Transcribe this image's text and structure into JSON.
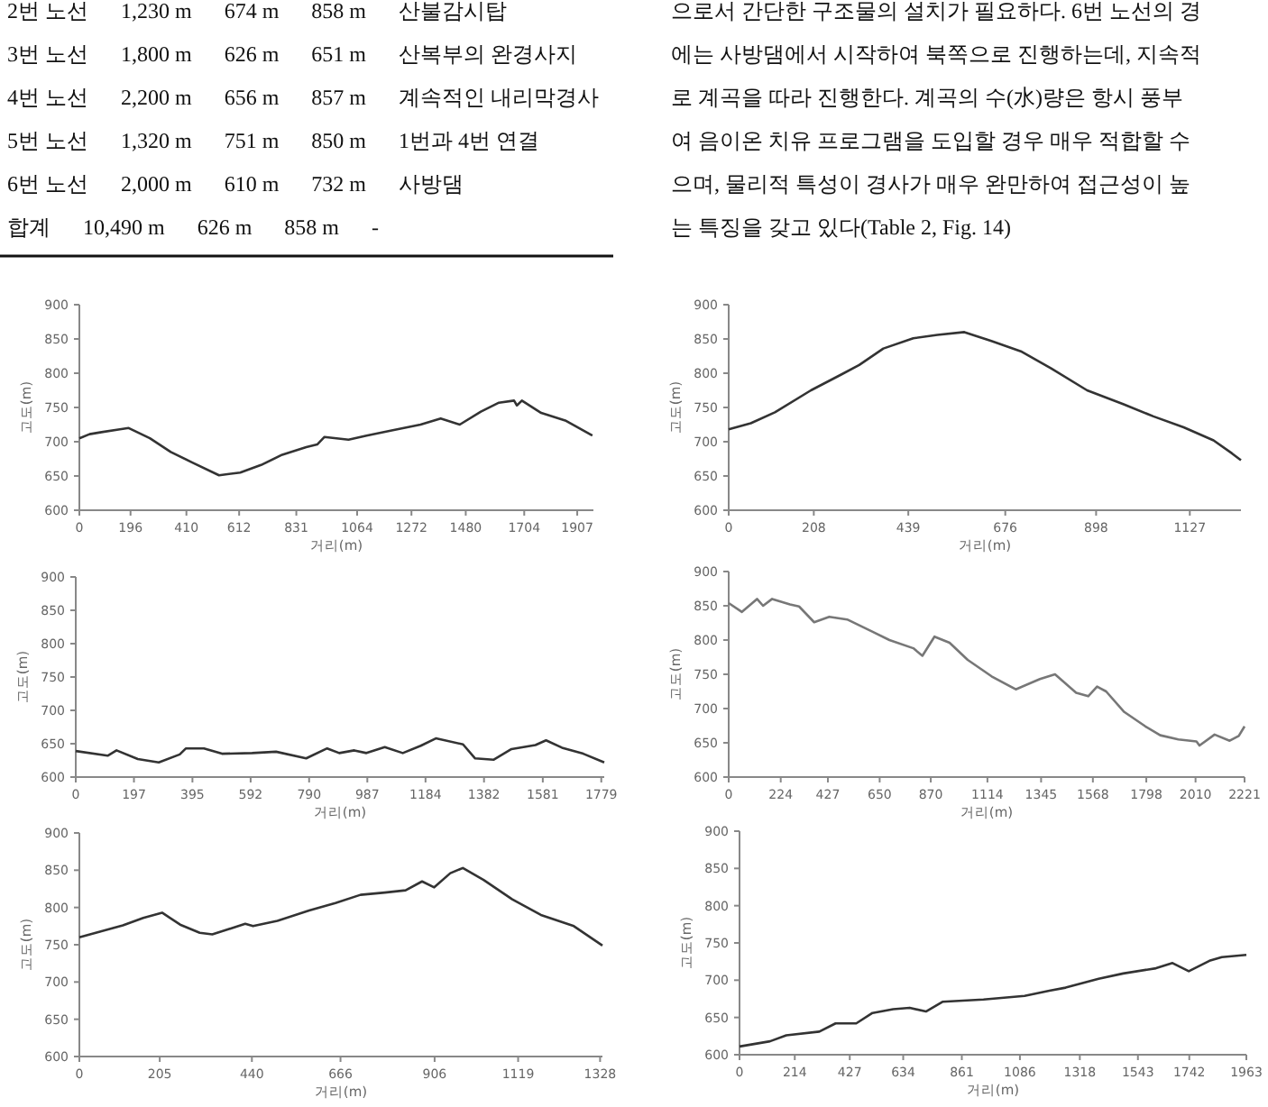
{
  "chart_data": [
    {
      "type": "other",
      "annotations": [
        "2번 노선",
        "1,230 m",
        "674 m",
        "858 m",
        "산불감시탑",
        "3번 노선",
        "1,800 m",
        "626 m",
        "651 m",
        "산복부의 완경사지",
        "4번 노선",
        "2,200 m",
        "656 m",
        "857 m",
        "계속적인 내리막경사",
        "5번 노선",
        "1,320 m",
        "751 m",
        "850 m",
        "1번과 4번 연결",
        "6번 노선",
        "2,000 m",
        "610 m",
        "732 m",
        "사방댐",
        "합계",
        "10,490 m",
        "626 m",
        "858 m",
        "-"
      ]
    },
    {
      "type": "other",
      "annotations": [
        "으로서 간단한 구조물의 설치가 필요하다. 6번 노선의 경",
        "에는 사방댐에서 시작하여 북쪽으로 진행하는데, 지속적",
        "로 계곡을 따라 진행한다. 계곡의 수(水)량은 항시 풍부",
        "여 음이온 치유 프로그램을 도입할 경우 매우 적합할 수",
        "으며, 물리적 특성이 경사가 매우 완만하여 접근성이 높",
        "는 특징을 갖고 있다(Table 2, Fig. 14)"
      ]
    },
    {
      "type": "line",
      "xlabel": "거리(m)",
      "ylabel": "고도(m)",
      "xlim": [
        0,
        1969
      ],
      "xticks": [
        0,
        196,
        410,
        612,
        831,
        1064,
        1272,
        1480,
        1704,
        1907
      ],
      "ylim": [
        600,
        900
      ],
      "yticks": [
        600,
        650,
        700,
        750,
        800,
        850,
        900
      ],
      "x": [
        0,
        39,
        85,
        155,
        189,
        270,
        350,
        431,
        535,
        616,
        696,
        777,
        869,
        911,
        939,
        1031,
        1100,
        1192,
        1307,
        1384,
        1457,
        1538,
        1607,
        1665,
        1676,
        1695,
        1769,
        1861,
        1965
      ],
      "series": [
        {
          "color": "#333333",
          "values": [
            705,
            711,
            714,
            718,
            720,
            705,
            685,
            670,
            651,
            655,
            666,
            681,
            692,
            696,
            707,
            703,
            709,
            716,
            725,
            734,
            725,
            744,
            757,
            760,
            753,
            760,
            742,
            731,
            709
          ]
        }
      ]
    },
    {
      "type": "line",
      "xlabel": "거리(m)",
      "ylabel": "고도(m)",
      "xlim": [
        0,
        1252
      ],
      "xticks": [
        0,
        208,
        439,
        676,
        898,
        1127
      ],
      "ylim": [
        600,
        900
      ],
      "yticks": [
        600,
        650,
        700,
        750,
        800,
        850,
        900
      ],
      "x": [
        0,
        54,
        113,
        201,
        275,
        319,
        378,
        451,
        510,
        576,
        642,
        714,
        788,
        876,
        964,
        1038,
        1112,
        1185,
        1230,
        1252
      ],
      "series": [
        {
          "color": "#333333",
          "values": [
            718,
            727,
            743,
            775,
            798,
            812,
            836,
            851,
            856,
            860,
            847,
            832,
            807,
            775,
            755,
            737,
            721,
            702,
            683,
            673
          ]
        }
      ]
    },
    {
      "type": "line",
      "xlabel": "거리(m)",
      "ylabel": "고도(m)",
      "xlim": [
        0,
        1789
      ],
      "xticks": [
        0,
        197,
        395,
        592,
        790,
        987,
        1184,
        1382,
        1581,
        1779
      ],
      "ylim": [
        600,
        900
      ],
      "yticks": [
        600,
        650,
        700,
        750,
        800,
        850,
        900
      ],
      "x": [
        0,
        108,
        138,
        210,
        281,
        352,
        373,
        434,
        495,
        597,
        678,
        780,
        851,
        892,
        943,
        984,
        1046,
        1107,
        1168,
        1219,
        1311,
        1352,
        1414,
        1475,
        1556,
        1592,
        1646,
        1718,
        1789
      ],
      "series": [
        {
          "color": "#333333",
          "values": [
            639,
            632,
            640,
            627,
            622,
            634,
            643,
            643,
            635,
            636,
            638,
            628,
            643,
            636,
            640,
            636,
            645,
            636,
            647,
            658,
            649,
            628,
            626,
            642,
            648,
            655,
            644,
            635,
            622
          ]
        }
      ]
    },
    {
      "type": "line",
      "xlabel": "거리(m)",
      "ylabel": "고도(m)",
      "xlim": [
        0,
        2221
      ],
      "xticks": [
        0,
        224,
        427,
        650,
        870,
        1114,
        1345,
        1568,
        1798,
        2010,
        2221
      ],
      "ylim": [
        600,
        900
      ],
      "yticks": [
        600,
        650,
        700,
        750,
        800,
        850,
        900
      ],
      "x": [
        0,
        57,
        122,
        148,
        187,
        264,
        303,
        368,
        433,
        510,
        614,
        692,
        795,
        834,
        886,
        951,
        1029,
        1132,
        1236,
        1340,
        1405,
        1496,
        1548,
        1586,
        1625,
        1703,
        1794,
        1858,
        1936,
        2014,
        2027,
        2092,
        2157,
        2196,
        2221
      ],
      "series": [
        {
          "color": "#777777",
          "values": [
            854,
            841,
            860,
            850,
            860,
            852,
            849,
            826,
            834,
            830,
            813,
            800,
            788,
            777,
            805,
            796,
            771,
            747,
            728,
            743,
            750,
            723,
            718,
            732,
            725,
            695,
            674,
            661,
            655,
            652,
            646,
            662,
            653,
            660,
            674
          ]
        }
      ]
    },
    {
      "type": "line",
      "xlabel": "거리(m)",
      "ylabel": "고도(m)",
      "xlim": [
        0,
        1334
      ],
      "xticks": [
        0,
        205,
        440,
        666,
        906,
        1119,
        1328
      ],
      "ylim": [
        600,
        900
      ],
      "yticks": [
        600,
        650,
        700,
        750,
        800,
        850,
        900
      ],
      "x": [
        0,
        111,
        163,
        211,
        257,
        307,
        339,
        423,
        443,
        505,
        586,
        653,
        717,
        779,
        832,
        874,
        905,
        946,
        978,
        1031,
        1104,
        1177,
        1261,
        1334
      ],
      "series": [
        {
          "color": "#333333",
          "values": [
            760,
            776,
            786,
            793,
            777,
            766,
            764,
            778,
            775,
            782,
            796,
            806,
            817,
            820,
            823,
            835,
            827,
            846,
            853,
            837,
            811,
            790,
            775,
            749
          ]
        }
      ]
    },
    {
      "type": "line",
      "xlabel": "거리(m)",
      "ylabel": "고도(m)",
      "xlim": [
        0,
        1963
      ],
      "xticks": [
        0,
        214,
        427,
        634,
        861,
        1086,
        1318,
        1543,
        1742,
        1963
      ],
      "ylim": [
        600,
        900
      ],
      "yticks": [
        600,
        650,
        700,
        750,
        800,
        850,
        900
      ],
      "x": [
        0,
        118,
        181,
        309,
        372,
        452,
        515,
        595,
        659,
        722,
        786,
        945,
        1104,
        1200,
        1263,
        1391,
        1486,
        1613,
        1677,
        1740,
        1820,
        1868,
        1963
      ],
      "series": [
        {
          "color": "#333333",
          "values": [
            611,
            618,
            626,
            631,
            642,
            642,
            656,
            661,
            663,
            658,
            671,
            674,
            679,
            686,
            690,
            702,
            709,
            716,
            723,
            712,
            726,
            731,
            734
          ]
        }
      ]
    }
  ]
}
